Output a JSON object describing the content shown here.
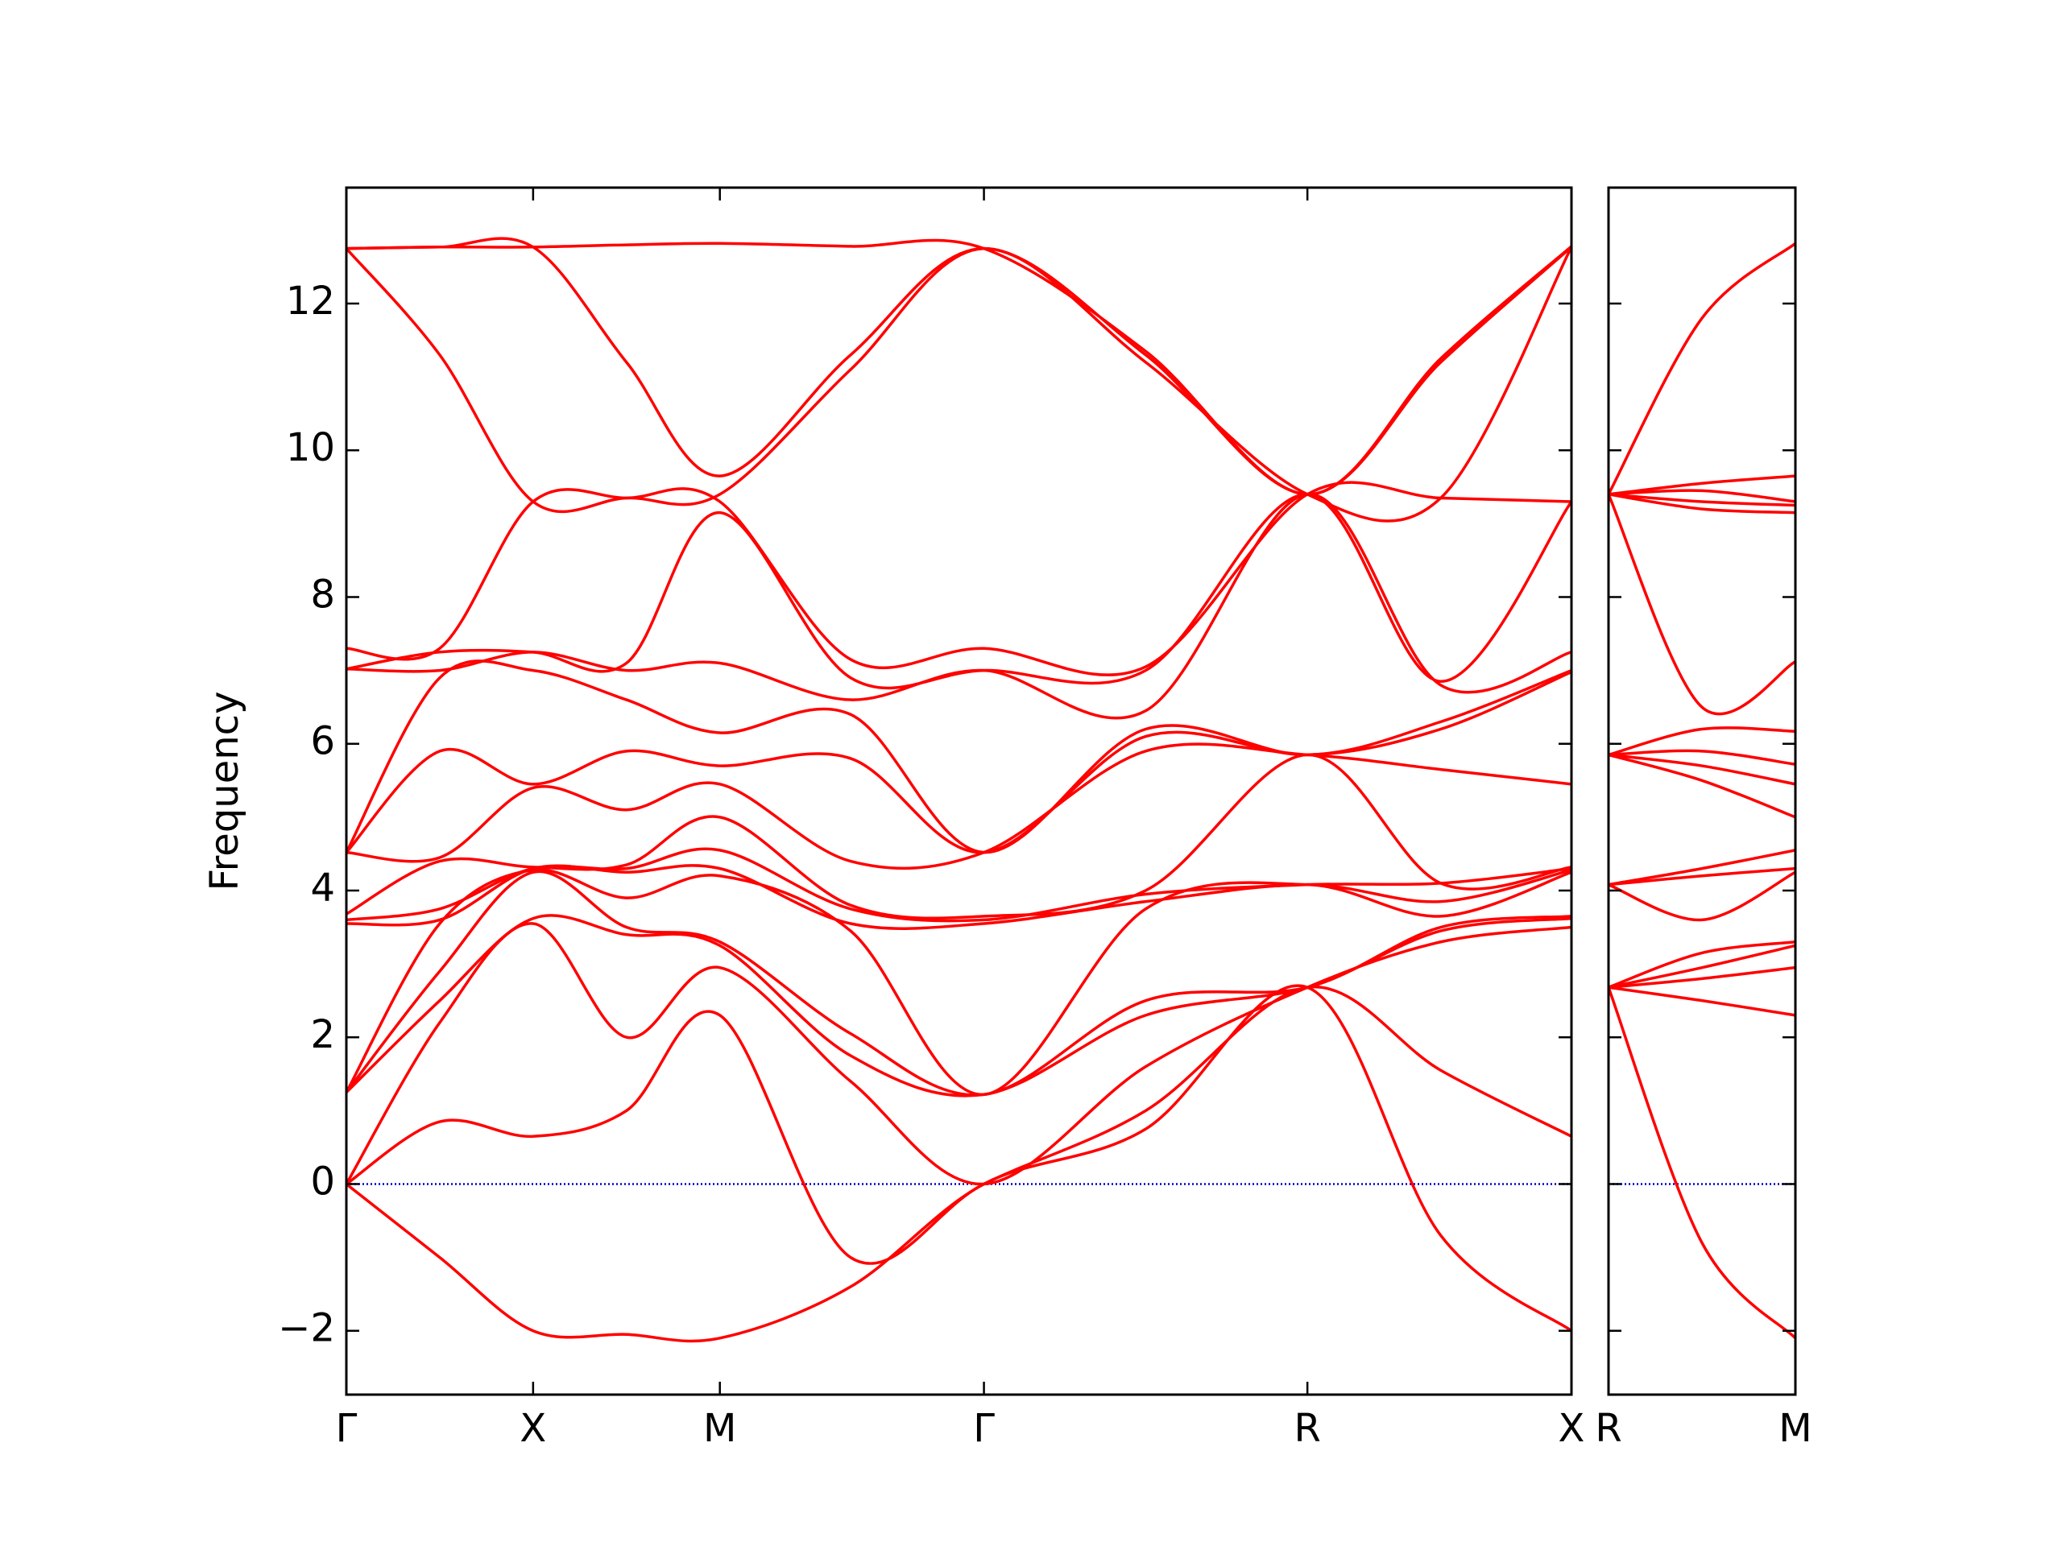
{
  "chart_data": [
    {
      "type": "line",
      "ylabel": "Frequency",
      "color": "#ff0000",
      "zero_line": true,
      "zero_line_color": "#0000cc",
      "xlim": [
        0,
        3.28
      ],
      "ylim": [
        -2.87,
        13.58
      ],
      "xticks": [
        {
          "value": 0,
          "label": "Γ"
        },
        {
          "value": 0.5,
          "label": "X"
        },
        {
          "value": 1.0,
          "label": "M"
        },
        {
          "value": 1.707,
          "label": "Γ"
        },
        {
          "value": 2.573,
          "label": "R"
        },
        {
          "value": 3.28,
          "label": "X"
        }
      ],
      "yticks": [
        {
          "value": -2,
          "label": "−2"
        },
        0,
        2,
        4,
        6,
        8,
        10,
        12
      ],
      "ytick_labels": true,
      "x": [
        0,
        0.25,
        0.5,
        0.75,
        1.0,
        1.35,
        1.707,
        2.14,
        2.573,
        2.93,
        3.28
      ],
      "series": [
        {
          "values": [
            0,
            -1.0,
            -2.0,
            -2.05,
            -2.1,
            -1.4,
            0,
            0.75,
            2.68,
            -0.7,
            -2.0
          ]
        },
        {
          "values": [
            0,
            0.85,
            0.65,
            1.0,
            2.3,
            -1.0,
            0,
            1.0,
            2.68,
            1.55,
            0.65
          ]
        },
        {
          "values": [
            0,
            2.2,
            3.55,
            2.0,
            2.95,
            1.4,
            0,
            1.6,
            2.68,
            3.3,
            3.5
          ]
        },
        {
          "values": [
            1.25,
            2.5,
            3.62,
            3.4,
            3.25,
            1.75,
            1.22,
            2.3,
            2.68,
            3.45,
            3.62
          ]
        },
        {
          "values": [
            1.25,
            2.9,
            4.25,
            3.5,
            3.3,
            2.05,
            1.22,
            2.5,
            2.68,
            3.5,
            3.65
          ]
        },
        {
          "values": [
            1.25,
            3.55,
            4.28,
            3.9,
            4.2,
            3.45,
            1.22,
            3.75,
            4.08,
            3.65,
            4.25
          ]
        },
        {
          "values": [
            3.55,
            3.6,
            4.3,
            4.25,
            4.3,
            3.55,
            3.55,
            3.85,
            4.08,
            3.85,
            4.28
          ]
        },
        {
          "values": [
            3.6,
            3.75,
            4.3,
            4.3,
            4.55,
            3.75,
            3.6,
            3.95,
            4.08,
            4.1,
            4.3
          ]
        },
        {
          "values": [
            3.68,
            4.4,
            4.32,
            4.35,
            5.0,
            3.8,
            3.65,
            4.0,
            5.85,
            4.1,
            4.32
          ]
        },
        {
          "values": [
            4.52,
            4.45,
            5.4,
            5.1,
            5.45,
            4.4,
            4.52,
            5.9,
            5.85,
            5.65,
            5.45
          ]
        },
        {
          "values": [
            4.52,
            5.9,
            5.45,
            5.9,
            5.7,
            5.8,
            4.52,
            6.1,
            5.85,
            6.2,
            6.98
          ]
        },
        {
          "values": [
            4.52,
            6.9,
            7.0,
            6.6,
            6.15,
            6.4,
            4.52,
            6.2,
            5.85,
            6.3,
            7.0
          ]
        },
        {
          "values": [
            7.02,
            7.0,
            7.25,
            7.0,
            7.1,
            6.6,
            7.0,
            6.45,
            9.4,
            6.8,
            7.25
          ]
        },
        {
          "values": [
            7.02,
            7.25,
            7.25,
            7.1,
            9.15,
            6.9,
            7.0,
            7.0,
            9.4,
            6.85,
            9.3
          ]
        },
        {
          "values": [
            7.3,
            7.3,
            9.3,
            9.35,
            9.3,
            7.15,
            7.3,
            7.05,
            9.4,
            9.35,
            9.3
          ]
        },
        {
          "values": [
            12.75,
            11.3,
            9.3,
            9.35,
            9.4,
            11.1,
            12.75,
            11.2,
            9.4,
            9.35,
            12.77
          ]
        },
        {
          "values": [
            12.75,
            12.77,
            12.77,
            11.2,
            9.65,
            11.3,
            12.75,
            11.3,
            9.4,
            11.2,
            12.77
          ]
        },
        {
          "values": [
            12.75,
            12.77,
            12.77,
            12.8,
            12.82,
            12.78,
            12.75,
            11.35,
            9.4,
            11.25,
            12.78
          ]
        }
      ]
    },
    {
      "type": "line",
      "color": "#ff0000",
      "zero_line": true,
      "zero_line_color": "#0000cc",
      "xlim": [
        0,
        0.5
      ],
      "ylim": [
        -2.87,
        13.58
      ],
      "xticks": [
        {
          "value": 0,
          "label": "R"
        },
        {
          "value": 0.5,
          "label": "M"
        }
      ],
      "yticks": [
        -2,
        0,
        2,
        4,
        6,
        8,
        10,
        12
      ],
      "ytick_labels": false,
      "x": [
        0,
        0.25,
        0.5
      ],
      "series": [
        {
          "values": [
            2.68,
            -0.8,
            -2.1
          ]
        },
        {
          "values": [
            2.68,
            2.5,
            2.3
          ]
        },
        {
          "values": [
            2.68,
            2.8,
            2.95
          ]
        },
        {
          "values": [
            2.68,
            2.95,
            3.25
          ]
        },
        {
          "values": [
            2.68,
            3.15,
            3.3
          ]
        },
        {
          "values": [
            4.08,
            3.6,
            4.25
          ]
        },
        {
          "values": [
            4.08,
            4.2,
            4.3
          ]
        },
        {
          "values": [
            4.08,
            4.3,
            4.55
          ]
        },
        {
          "values": [
            5.85,
            5.5,
            5.0
          ]
        },
        {
          "values": [
            5.85,
            5.7,
            5.45
          ]
        },
        {
          "values": [
            5.85,
            5.9,
            5.72
          ]
        },
        {
          "values": [
            5.85,
            6.2,
            6.17
          ]
        },
        {
          "values": [
            9.4,
            6.5,
            7.12
          ]
        },
        {
          "values": [
            9.4,
            9.2,
            9.15
          ]
        },
        {
          "values": [
            9.4,
            9.3,
            9.25
          ]
        },
        {
          "values": [
            9.4,
            9.45,
            9.3
          ]
        },
        {
          "values": [
            9.4,
            9.55,
            9.65
          ]
        },
        {
          "values": [
            9.4,
            11.8,
            12.82
          ]
        }
      ]
    }
  ]
}
